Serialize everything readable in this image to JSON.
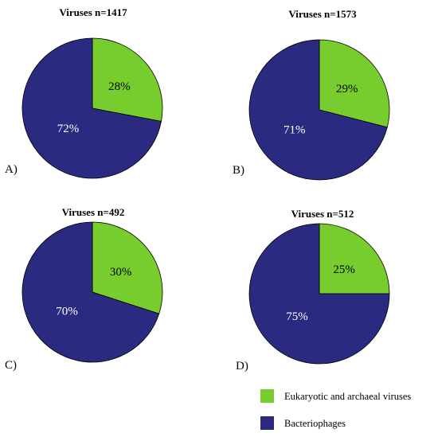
{
  "colors": {
    "eukaryotic_archaeal": "#77cc2e",
    "bacteriophages": "#2a2a80",
    "label_on_green": "#000000",
    "label_on_blue": "#ffffff"
  },
  "legend": {
    "position": "bottom-right",
    "items": [
      {
        "label": "Eukaryotic and archaeal viruses",
        "color": "#77cc2e"
      },
      {
        "label": "Bacteriophages",
        "color": "#2a2a80"
      }
    ]
  },
  "chart_data": [
    {
      "type": "pie",
      "panel": "A)",
      "title": "Viruses n=1417",
      "slices": [
        {
          "label": "28%",
          "value": 28,
          "color": "#77cc2e"
        },
        {
          "label": "72%",
          "value": 72,
          "color": "#2a2a80"
        }
      ]
    },
    {
      "type": "pie",
      "panel": "B)",
      "title": "Viruses n=1573",
      "slices": [
        {
          "label": "29%",
          "value": 29,
          "color": "#77cc2e"
        },
        {
          "label": "71%",
          "value": 71,
          "color": "#2a2a80"
        }
      ]
    },
    {
      "type": "pie",
      "panel": "C)",
      "title": "Viruses n=492",
      "slices": [
        {
          "label": "30%",
          "value": 30,
          "color": "#77cc2e"
        },
        {
          "label": "70%",
          "value": 70,
          "color": "#2a2a80"
        }
      ]
    },
    {
      "type": "pie",
      "panel": "D)",
      "title": "Viruses n=512",
      "slices": [
        {
          "label": "25%",
          "value": 25,
          "color": "#77cc2e"
        },
        {
          "label": "75%",
          "value": 75,
          "color": "#2a2a80"
        }
      ]
    }
  ]
}
